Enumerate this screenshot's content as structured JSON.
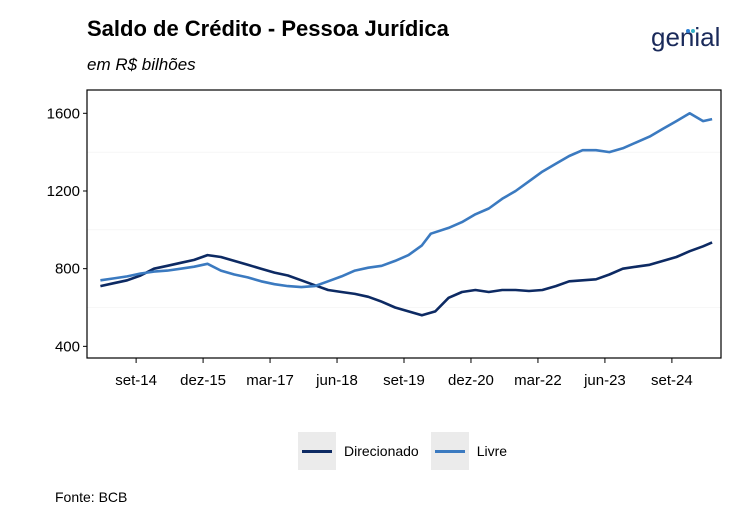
{
  "header": {
    "title": "Saldo de Crédito - Pessoa Jurídica",
    "subtitle": "em R$ bilhões",
    "logo_text": "genial"
  },
  "footer": {
    "source": "Fonte: BCB"
  },
  "colors": {
    "direcionado": "#0d2a63",
    "livre": "#3b7ac0",
    "logo_dots": [
      "#2b7fd4",
      "#37b3c8"
    ]
  },
  "chart_data": {
    "type": "line",
    "title": "Saldo de Crédito - Pessoa Jurídica",
    "subtitle": "em R$ bilhões",
    "xlabel": "",
    "ylabel": "",
    "x_ticks": [
      "set-14",
      "dez-15",
      "mar-17",
      "jun-18",
      "set-19",
      "dez-20",
      "mar-22",
      "jun-23",
      "set-24"
    ],
    "y_ticks": [
      400,
      800,
      1200,
      1600
    ],
    "ylim": [
      340,
      1720
    ],
    "xlim": [
      "2013-10",
      "2025-08"
    ],
    "grid": true,
    "legend_position": "bottom",
    "series": [
      {
        "name": "Direcionado",
        "points": [
          [
            "2014-01",
            710
          ],
          [
            "2014-04",
            725
          ],
          [
            "2014-07",
            740
          ],
          [
            "2014-10",
            765
          ],
          [
            "2015-01",
            800
          ],
          [
            "2015-04",
            815
          ],
          [
            "2015-07",
            830
          ],
          [
            "2015-10",
            845
          ],
          [
            "2016-01",
            870
          ],
          [
            "2016-04",
            860
          ],
          [
            "2016-07",
            840
          ],
          [
            "2016-10",
            820
          ],
          [
            "2017-01",
            800
          ],
          [
            "2017-04",
            780
          ],
          [
            "2017-07",
            765
          ],
          [
            "2017-10",
            740
          ],
          [
            "2018-01",
            715
          ],
          [
            "2018-04",
            690
          ],
          [
            "2018-07",
            680
          ],
          [
            "2018-10",
            670
          ],
          [
            "2019-01",
            655
          ],
          [
            "2019-04",
            630
          ],
          [
            "2019-07",
            600
          ],
          [
            "2019-10",
            580
          ],
          [
            "2020-01",
            560
          ],
          [
            "2020-04",
            580
          ],
          [
            "2020-07",
            650
          ],
          [
            "2020-10",
            680
          ],
          [
            "2021-01",
            690
          ],
          [
            "2021-04",
            680
          ],
          [
            "2021-07",
            690
          ],
          [
            "2021-10",
            690
          ],
          [
            "2022-01",
            685
          ],
          [
            "2022-04",
            690
          ],
          [
            "2022-07",
            710
          ],
          [
            "2022-10",
            735
          ],
          [
            "2023-01",
            740
          ],
          [
            "2023-04",
            745
          ],
          [
            "2023-07",
            770
          ],
          [
            "2023-10",
            800
          ],
          [
            "2024-01",
            810
          ],
          [
            "2024-04",
            820
          ],
          [
            "2024-07",
            840
          ],
          [
            "2024-10",
            860
          ],
          [
            "2025-01",
            890
          ],
          [
            "2025-04",
            915
          ],
          [
            "2025-06",
            935
          ]
        ]
      },
      {
        "name": "Livre",
        "points": [
          [
            "2014-01",
            740
          ],
          [
            "2014-04",
            750
          ],
          [
            "2014-07",
            760
          ],
          [
            "2014-10",
            775
          ],
          [
            "2015-01",
            785
          ],
          [
            "2015-04",
            790
          ],
          [
            "2015-07",
            800
          ],
          [
            "2015-10",
            810
          ],
          [
            "2016-01",
            825
          ],
          [
            "2016-04",
            790
          ],
          [
            "2016-07",
            770
          ],
          [
            "2016-10",
            755
          ],
          [
            "2017-01",
            735
          ],
          [
            "2017-04",
            720
          ],
          [
            "2017-07",
            710
          ],
          [
            "2017-10",
            705
          ],
          [
            "2018-01",
            710
          ],
          [
            "2018-04",
            735
          ],
          [
            "2018-07",
            760
          ],
          [
            "2018-10",
            790
          ],
          [
            "2019-01",
            805
          ],
          [
            "2019-04",
            815
          ],
          [
            "2019-07",
            840
          ],
          [
            "2019-10",
            870
          ],
          [
            "2020-01",
            920
          ],
          [
            "2020-03",
            980
          ],
          [
            "2020-07",
            1010
          ],
          [
            "2020-10",
            1040
          ],
          [
            "2021-01",
            1080
          ],
          [
            "2021-04",
            1110
          ],
          [
            "2021-07",
            1160
          ],
          [
            "2021-10",
            1200
          ],
          [
            "2022-01",
            1250
          ],
          [
            "2022-04",
            1300
          ],
          [
            "2022-07",
            1340
          ],
          [
            "2022-10",
            1380
          ],
          [
            "2023-01",
            1410
          ],
          [
            "2023-04",
            1410
          ],
          [
            "2023-07",
            1400
          ],
          [
            "2023-10",
            1420
          ],
          [
            "2024-01",
            1450
          ],
          [
            "2024-04",
            1480
          ],
          [
            "2024-07",
            1520
          ],
          [
            "2024-10",
            1560
          ],
          [
            "2025-01",
            1600
          ],
          [
            "2025-04",
            1560
          ],
          [
            "2025-06",
            1570
          ]
        ]
      }
    ]
  }
}
